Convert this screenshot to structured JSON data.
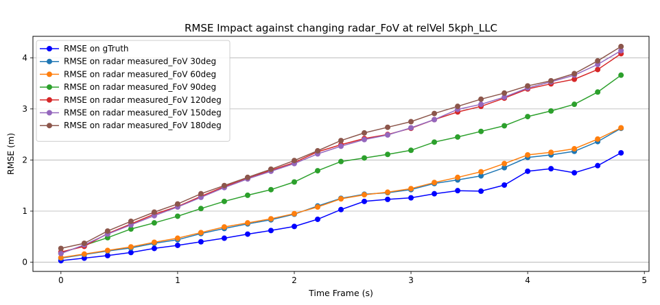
{
  "chart_data": {
    "type": "line",
    "title": "RMSE Impact against changing radar_FoV at relVel 5kph_LLC",
    "xlabel": "Time Frame (s)",
    "ylabel": "RMSE (m)",
    "xlim": [
      -0.24,
      5.04
    ],
    "ylim": [
      -0.18,
      4.42
    ],
    "x_ticks": [
      0,
      1,
      2,
      3,
      4,
      5
    ],
    "y_ticks": [
      0,
      1,
      2,
      3,
      4
    ],
    "grid": "horizontal",
    "legend_position": "top-left",
    "x": [
      0,
      0.2,
      0.4,
      0.6,
      0.8,
      1.0,
      1.2,
      1.4,
      1.6,
      1.8,
      2.0,
      2.2,
      2.4,
      2.6,
      2.8,
      3.0,
      3.2,
      3.4,
      3.6,
      3.8,
      4.0,
      4.2,
      4.4,
      4.6,
      4.8
    ],
    "series": [
      {
        "name": "RMSE on gTruth",
        "color": "#0000ff",
        "values": [
          0.03,
          0.08,
          0.13,
          0.19,
          0.27,
          0.33,
          0.4,
          0.47,
          0.55,
          0.62,
          0.7,
          0.84,
          1.03,
          1.19,
          1.23,
          1.26,
          1.34,
          1.4,
          1.39,
          1.51,
          1.78,
          1.83,
          1.75,
          1.89,
          2.14
        ]
      },
      {
        "name": "RMSE on radar measured_FoV 30deg",
        "color": "#1f77b4",
        "values": [
          0.08,
          0.15,
          0.22,
          0.28,
          0.37,
          0.44,
          0.56,
          0.66,
          0.75,
          0.83,
          0.94,
          1.1,
          1.25,
          1.33,
          1.36,
          1.42,
          1.54,
          1.61,
          1.69,
          1.85,
          2.05,
          2.1,
          2.17,
          2.36,
          2.62
        ]
      },
      {
        "name": "RMSE on radar measured_FoV 60deg",
        "color": "#ff7f0e",
        "values": [
          0.09,
          0.16,
          0.23,
          0.3,
          0.39,
          0.47,
          0.58,
          0.69,
          0.77,
          0.85,
          0.95,
          1.08,
          1.24,
          1.32,
          1.37,
          1.44,
          1.56,
          1.66,
          1.77,
          1.93,
          2.1,
          2.15,
          2.22,
          2.41,
          2.63
        ]
      },
      {
        "name": "RMSE on radar measured_FoV 90deg",
        "color": "#2ca02c",
        "values": [
          0.18,
          0.33,
          0.48,
          0.65,
          0.77,
          0.9,
          1.05,
          1.19,
          1.31,
          1.42,
          1.57,
          1.79,
          1.97,
          2.04,
          2.11,
          2.19,
          2.35,
          2.45,
          2.56,
          2.67,
          2.85,
          2.96,
          3.09,
          3.33,
          3.66
        ]
      },
      {
        "name": "RMSE on radar measured_FoV 120deg",
        "color": "#d62728",
        "values": [
          0.2,
          0.31,
          0.56,
          0.75,
          0.94,
          1.09,
          1.29,
          1.48,
          1.64,
          1.8,
          1.95,
          2.16,
          2.3,
          2.42,
          2.5,
          2.62,
          2.79,
          2.94,
          3.05,
          3.21,
          3.39,
          3.49,
          3.58,
          3.77,
          4.08
        ]
      },
      {
        "name": "RMSE on radar measured_FoV 150deg",
        "color": "#9467bd",
        "values": [
          0.17,
          0.34,
          0.55,
          0.73,
          0.91,
          1.08,
          1.27,
          1.46,
          1.63,
          1.78,
          1.93,
          2.12,
          2.27,
          2.4,
          2.49,
          2.63,
          2.79,
          2.99,
          3.09,
          3.23,
          3.41,
          3.53,
          3.66,
          3.87,
          4.14
        ]
      },
      {
        "name": "RMSE on radar measured_FoV 180deg",
        "color": "#8c564b",
        "values": [
          0.27,
          0.37,
          0.61,
          0.8,
          0.98,
          1.14,
          1.34,
          1.5,
          1.66,
          1.82,
          1.99,
          2.18,
          2.38,
          2.53,
          2.64,
          2.75,
          2.91,
          3.05,
          3.19,
          3.31,
          3.45,
          3.55,
          3.69,
          3.94,
          4.22
        ]
      }
    ]
  }
}
